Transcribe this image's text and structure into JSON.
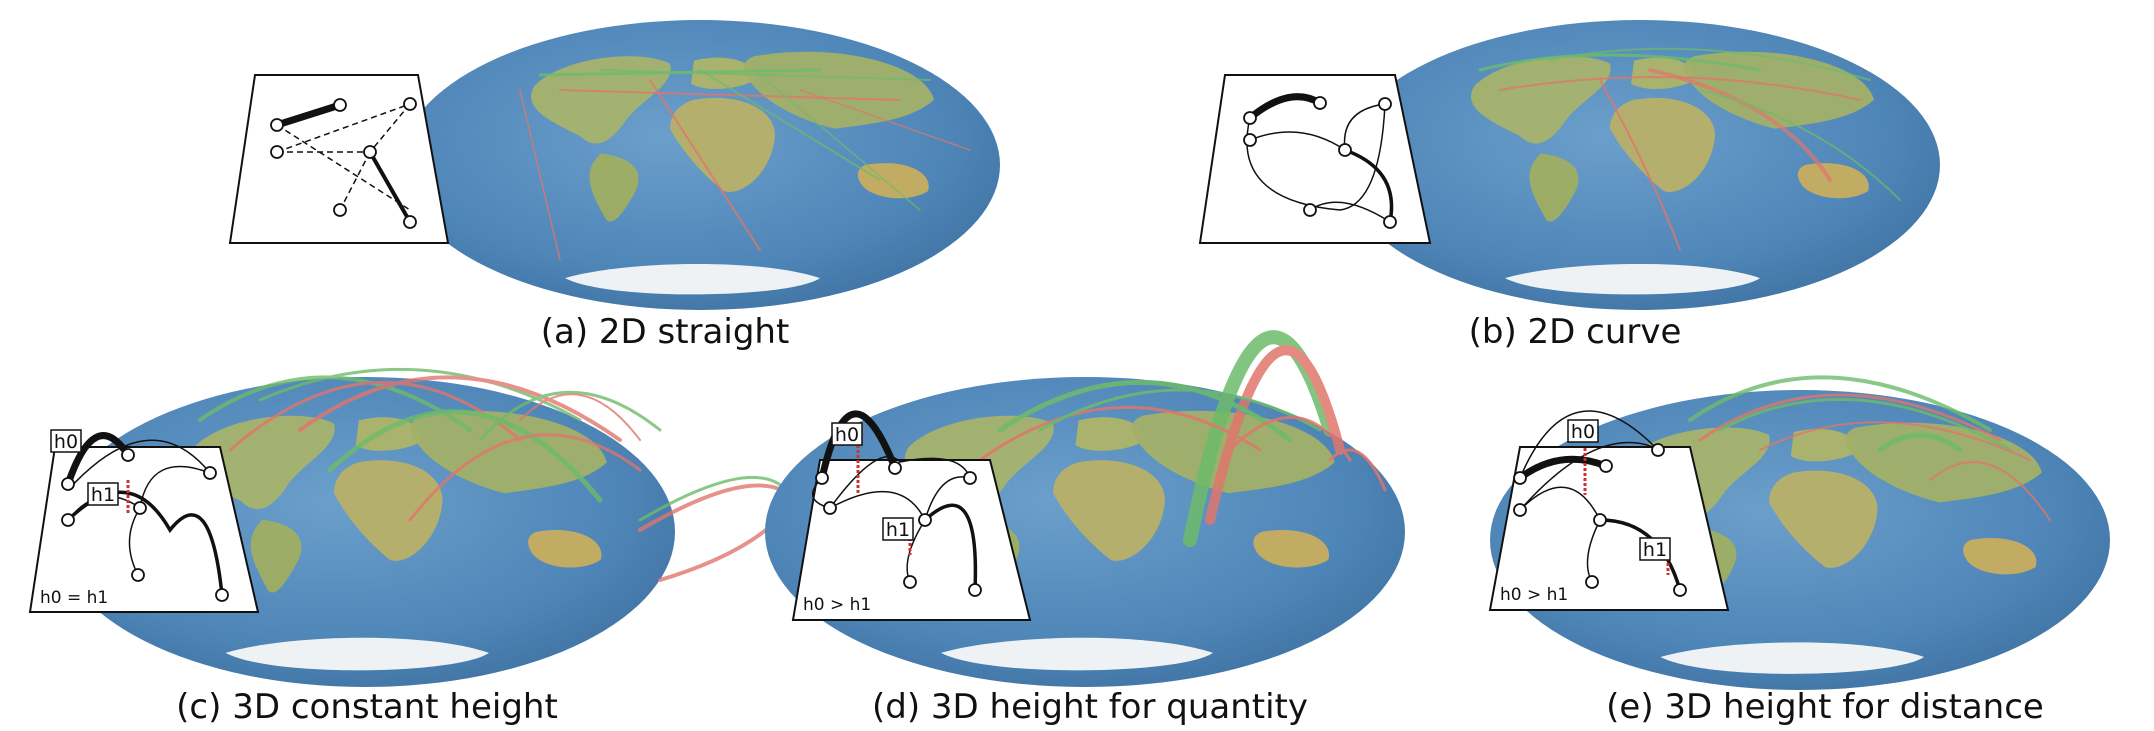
{
  "panels": [
    {
      "id": "a",
      "caption": "(a) 2D straight"
    },
    {
      "id": "b",
      "caption": "(b) 2D curve"
    },
    {
      "id": "c",
      "caption": "(c) 3D constant height",
      "relation": "h0 = h1",
      "labels": [
        "h0",
        "h1"
      ]
    },
    {
      "id": "d",
      "caption": "(d) 3D height for quantity",
      "relation": "h0 > h1",
      "labels": [
        "h0",
        "h1"
      ]
    },
    {
      "id": "e",
      "caption": "(e) 3D height for distance",
      "relation": "h0 > h1",
      "labels": [
        "h0",
        "h1"
      ]
    }
  ],
  "colors": {
    "ocean": "#4f86b8",
    "land": "#a8b46c",
    "ice": "#eef2f5",
    "flow_green": "#6dbb6a",
    "flow_red": "#e0766c",
    "inset_stroke": "#111111",
    "height_marker": "#d03030"
  }
}
